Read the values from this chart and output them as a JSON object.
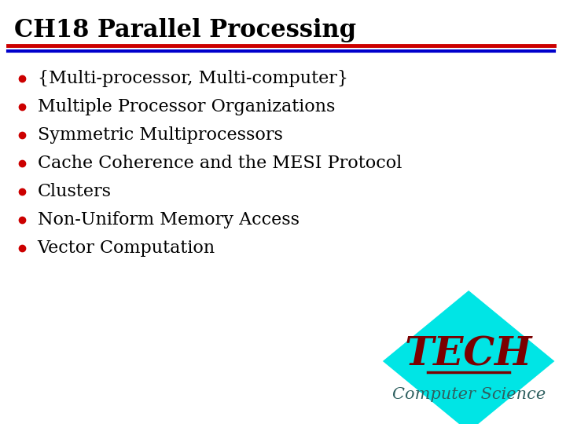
{
  "title": "CH18 Parallel Processing",
  "title_color": "#000000",
  "title_fontsize": 22,
  "title_bold": true,
  "line1_color": "#cc0000",
  "line2_color": "#0000cc",
  "bullet_items": [
    "{Multi-processor, Multi-computer}",
    "Multiple Processor Organizations",
    "Symmetric Multiprocessors",
    "Cache Coherence and the MESI Protocol",
    "Clusters",
    "Non-Uniform Memory Access",
    "Vector Computation"
  ],
  "bullet_color": "#cc0000",
  "text_color": "#000000",
  "text_fontsize": 16,
  "bg_color": "#ffffff",
  "diamond_color": "#00e5e5",
  "tech_text": "TECH",
  "tech_color": "#7b0000",
  "tech_fontsize": 36,
  "cs_text": "Computer Science",
  "cs_color": "#2f6060",
  "cs_fontsize": 15
}
